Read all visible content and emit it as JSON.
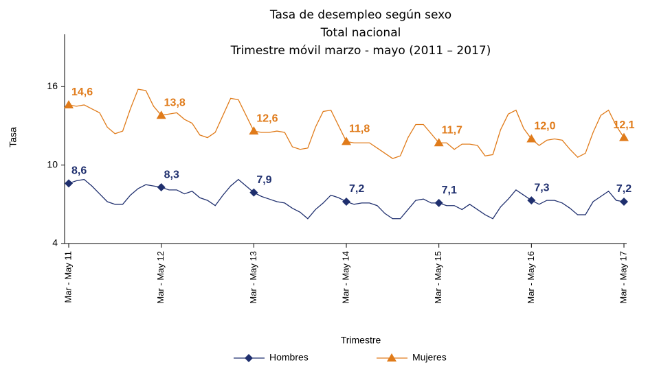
{
  "chart_data": {
    "type": "line",
    "title": "Tasa de desempleo según sexo",
    "subtitle": [
      "Total nacional",
      "Trimestre móvil marzo - mayo (2011 – 2017)"
    ],
    "y_label": "Tasa",
    "x_label": "Trimestre",
    "categories": [
      "Mar - May 11",
      null,
      null,
      null,
      null,
      null,
      null,
      null,
      null,
      null,
      null,
      null,
      "Mar - May 12",
      null,
      null,
      null,
      null,
      null,
      null,
      null,
      null,
      null,
      null,
      null,
      "Mar - May 13",
      null,
      null,
      null,
      null,
      null,
      null,
      null,
      null,
      null,
      null,
      null,
      "Mar - May 14",
      null,
      null,
      null,
      null,
      null,
      null,
      null,
      null,
      null,
      null,
      null,
      "Mar - May 15",
      null,
      null,
      null,
      null,
      null,
      null,
      null,
      null,
      null,
      null,
      null,
      "Mar - May 16",
      null,
      null,
      null,
      null,
      null,
      null,
      null,
      null,
      null,
      null,
      null,
      "Mar - May 17"
    ],
    "series": [
      {
        "name": "Hombres",
        "color": "#1f2f6e",
        "marker": "diamond",
        "values": [
          8.6,
          8.8,
          8.9,
          8.4,
          7.8,
          7.2,
          7.0,
          7.0,
          7.7,
          8.2,
          8.5,
          8.4,
          8.3,
          8.1,
          8.1,
          7.8,
          8.0,
          7.5,
          7.3,
          6.9,
          7.7,
          8.4,
          8.9,
          8.4,
          7.9,
          7.6,
          7.4,
          7.2,
          7.1,
          6.7,
          6.4,
          5.9,
          6.6,
          7.1,
          7.7,
          7.5,
          7.2,
          7.0,
          7.1,
          7.1,
          6.9,
          6.3,
          5.9,
          5.9,
          6.6,
          7.3,
          7.4,
          7.1,
          7.1,
          6.9,
          6.9,
          6.6,
          7.0,
          6.6,
          6.2,
          5.9,
          6.8,
          7.4,
          8.1,
          7.7,
          7.3,
          7.0,
          7.3,
          7.3,
          7.1,
          6.7,
          6.2,
          6.2,
          7.2,
          7.6,
          8.0,
          7.3,
          7.2
        ],
        "value_labels": [
          "8,6",
          null,
          null,
          null,
          null,
          null,
          null,
          null,
          null,
          null,
          null,
          null,
          "8,3",
          null,
          null,
          null,
          null,
          null,
          null,
          null,
          null,
          null,
          null,
          null,
          "7,9",
          null,
          null,
          null,
          null,
          null,
          null,
          null,
          null,
          null,
          null,
          null,
          "7,2",
          null,
          null,
          null,
          null,
          null,
          null,
          null,
          null,
          null,
          null,
          null,
          "7,1",
          null,
          null,
          null,
          null,
          null,
          null,
          null,
          null,
          null,
          null,
          null,
          "7,3",
          null,
          null,
          null,
          null,
          null,
          null,
          null,
          null,
          null,
          null,
          null,
          "7,2"
        ]
      },
      {
        "name": "Mujeres",
        "color": "#e07b1a",
        "marker": "triangle",
        "values": [
          14.6,
          14.5,
          14.6,
          14.3,
          14.0,
          12.9,
          12.4,
          12.6,
          14.3,
          15.8,
          15.7,
          14.5,
          13.8,
          13.9,
          14.0,
          13.5,
          13.2,
          12.3,
          12.1,
          12.5,
          13.8,
          15.1,
          15.0,
          13.8,
          12.6,
          12.5,
          12.5,
          12.6,
          12.5,
          11.4,
          11.2,
          11.3,
          12.9,
          14.1,
          14.2,
          13.0,
          11.8,
          11.7,
          11.7,
          11.7,
          11.3,
          10.9,
          10.5,
          10.7,
          12.1,
          13.1,
          13.1,
          12.4,
          11.7,
          11.7,
          11.2,
          11.6,
          11.6,
          11.5,
          10.7,
          10.8,
          12.7,
          13.9,
          14.2,
          12.8,
          12.0,
          11.5,
          11.9,
          12.0,
          11.9,
          11.2,
          10.6,
          10.9,
          12.5,
          13.8,
          14.2,
          13.0,
          12.1
        ],
        "value_labels": [
          "14,6",
          null,
          null,
          null,
          null,
          null,
          null,
          null,
          null,
          null,
          null,
          null,
          "13,8",
          null,
          null,
          null,
          null,
          null,
          null,
          null,
          null,
          null,
          null,
          null,
          "12,6",
          null,
          null,
          null,
          null,
          null,
          null,
          null,
          null,
          null,
          null,
          null,
          "11,8",
          null,
          null,
          null,
          null,
          null,
          null,
          null,
          null,
          null,
          null,
          null,
          "11,7",
          null,
          null,
          null,
          null,
          null,
          null,
          null,
          null,
          null,
          null,
          null,
          "12,0",
          null,
          null,
          null,
          null,
          null,
          null,
          null,
          null,
          null,
          null,
          null,
          "12,1"
        ]
      }
    ],
    "ylim": [
      4,
      20
    ],
    "yticks": [
      4,
      10,
      16
    ],
    "grid": false,
    "legend": "bottom"
  }
}
